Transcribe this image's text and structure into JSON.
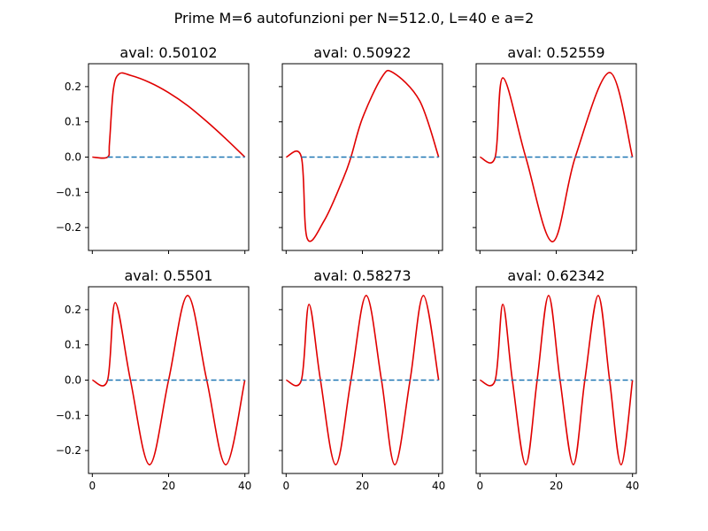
{
  "figure": {
    "title": "Prime M=6 autofunzioni per N=512.0, L=40 e a=2"
  },
  "colors": {
    "eigenfunction": "#e00000",
    "baseline": "#1f77b4"
  },
  "chart_data": [
    {
      "type": "line",
      "title": "aval: 0.50102",
      "mode": 1,
      "xlim": [
        -1,
        41
      ],
      "ylim": [
        -0.265,
        0.265
      ],
      "xticks": [
        0,
        20,
        40
      ],
      "xtick_labels": [
        "0",
        "20",
        "40"
      ],
      "yticks": [
        -0.2,
        -0.1,
        0.0,
        0.1,
        0.2
      ],
      "ytick_labels": [
        "−0.2",
        "−0.1",
        "0.0",
        "0.1",
        "0.2"
      ],
      "series": [
        {
          "style": "solid",
          "color": "red",
          "x": [
            0,
            4,
            4.5,
            5.5,
            7,
            10,
            15,
            20,
            25,
            30,
            35,
            40
          ],
          "y": [
            0,
            0,
            0.04,
            0.19,
            0.236,
            0.232,
            0.212,
            0.183,
            0.146,
            0.101,
            0.052,
            0.0
          ]
        },
        {
          "style": "dashed",
          "color": "steelblue",
          "x": [
            4,
            40
          ],
          "y": [
            0,
            0
          ]
        }
      ]
    },
    {
      "type": "line",
      "title": "aval: 0.50922",
      "mode": 2,
      "xlim": [
        -1,
        41
      ],
      "ylim": [
        -0.265,
        0.265
      ],
      "xticks": [
        0,
        20,
        40
      ],
      "xtick_labels": [
        "0",
        "20",
        "40"
      ],
      "yticks": [
        -0.2,
        -0.1,
        0.0,
        0.1,
        0.2
      ],
      "ytick_labels": [
        "−0.2",
        "−0.1",
        "0.0",
        "0.1",
        "0.2"
      ],
      "series": [
        {
          "style": "solid",
          "color": "red",
          "x": [
            0,
            4,
            5.5,
            10,
            15,
            17,
            20,
            25,
            28,
            35,
            40
          ],
          "y": [
            0,
            0,
            -0.23,
            -0.18,
            -0.06,
            0.0,
            0.11,
            0.225,
            0.24,
            0.16,
            0.0
          ]
        },
        {
          "style": "dashed",
          "color": "steelblue",
          "x": [
            4,
            40
          ],
          "y": [
            0,
            0
          ]
        }
      ]
    },
    {
      "type": "line",
      "title": "aval: 0.52559",
      "mode": 3,
      "xlim": [
        -1,
        41
      ],
      "ylim": [
        -0.265,
        0.265
      ],
      "xticks": [
        0,
        20,
        40
      ],
      "xtick_labels": [
        "0",
        "20",
        "40"
      ],
      "yticks": [
        -0.2,
        -0.1,
        0.0,
        0.1,
        0.2
      ],
      "ytick_labels": [
        "−0.2",
        "−0.1",
        "0.0",
        "0.1",
        "0.2"
      ],
      "series": [
        {
          "style": "solid",
          "color": "red",
          "x": [
            0,
            4,
            6,
            12,
            19,
            25,
            34,
            40
          ],
          "y": [
            0,
            0,
            0.225,
            0.0,
            -0.24,
            0.0,
            0.24,
            0.0
          ]
        },
        {
          "style": "dashed",
          "color": "steelblue",
          "x": [
            4,
            40
          ],
          "y": [
            0,
            0
          ]
        }
      ]
    },
    {
      "type": "line",
      "title": "aval: 0.5501",
      "mode": 4,
      "xlim": [
        -1,
        41
      ],
      "ylim": [
        -0.265,
        0.265
      ],
      "xticks": [
        0,
        20,
        40
      ],
      "xtick_labels": [
        "0",
        "20",
        "40"
      ],
      "yticks": [
        -0.2,
        -0.1,
        0.0,
        0.1,
        0.2
      ],
      "ytick_labels": [
        "−0.2",
        "−0.1",
        "0.0",
        "0.1",
        "0.2"
      ],
      "series": [
        {
          "style": "solid",
          "color": "red",
          "x": [
            0,
            4,
            6,
            10,
            15,
            20,
            25,
            30,
            35,
            40
          ],
          "y": [
            0,
            0,
            0.22,
            0.0,
            -0.24,
            0.0,
            0.24,
            0.0,
            -0.24,
            0.0
          ]
        },
        {
          "style": "dashed",
          "color": "steelblue",
          "x": [
            4,
            40
          ],
          "y": [
            0,
            0
          ]
        }
      ]
    },
    {
      "type": "line",
      "title": "aval: 0.58273",
      "mode": 5,
      "xlim": [
        -1,
        41
      ],
      "ylim": [
        -0.265,
        0.265
      ],
      "xticks": [
        0,
        20,
        40
      ],
      "xtick_labels": [
        "0",
        "20",
        "40"
      ],
      "yticks": [
        -0.2,
        -0.1,
        0.0,
        0.1,
        0.2
      ],
      "ytick_labels": [
        "−0.2",
        "−0.1",
        "0.0",
        "0.1",
        "0.2"
      ],
      "series": [
        {
          "style": "solid",
          "color": "red",
          "x": [
            0,
            4,
            6,
            9,
            13,
            17,
            21,
            25,
            28.5,
            32.5,
            36,
            40
          ],
          "y": [
            0,
            0,
            0.215,
            0.0,
            -0.24,
            0.0,
            0.24,
            0.0,
            -0.24,
            0.0,
            0.24,
            0.0
          ]
        },
        {
          "style": "dashed",
          "color": "steelblue",
          "x": [
            4,
            40
          ],
          "y": [
            0,
            0
          ]
        }
      ]
    },
    {
      "type": "line",
      "title": "aval: 0.62342",
      "mode": 6,
      "xlim": [
        -1,
        41
      ],
      "ylim": [
        -0.265,
        0.265
      ],
      "xticks": [
        0,
        20,
        40
      ],
      "xtick_labels": [
        "0",
        "20",
        "40"
      ],
      "yticks": [
        -0.2,
        -0.1,
        0.0,
        0.1,
        0.2
      ],
      "ytick_labels": [
        "−0.2",
        "−0.1",
        "0.0",
        "0.1",
        "0.2"
      ],
      "series": [
        {
          "style": "solid",
          "color": "red",
          "x": [
            0,
            4,
            6,
            8.5,
            12,
            15,
            18,
            21,
            24.5,
            27.5,
            31,
            34,
            37,
            40
          ],
          "y": [
            0,
            0,
            0.215,
            0.0,
            -0.24,
            0.0,
            0.24,
            0.0,
            -0.24,
            0.0,
            0.24,
            0.0,
            -0.24,
            0.0
          ]
        },
        {
          "style": "dashed",
          "color": "steelblue",
          "x": [
            4,
            40
          ],
          "y": [
            0,
            0
          ]
        }
      ]
    }
  ]
}
